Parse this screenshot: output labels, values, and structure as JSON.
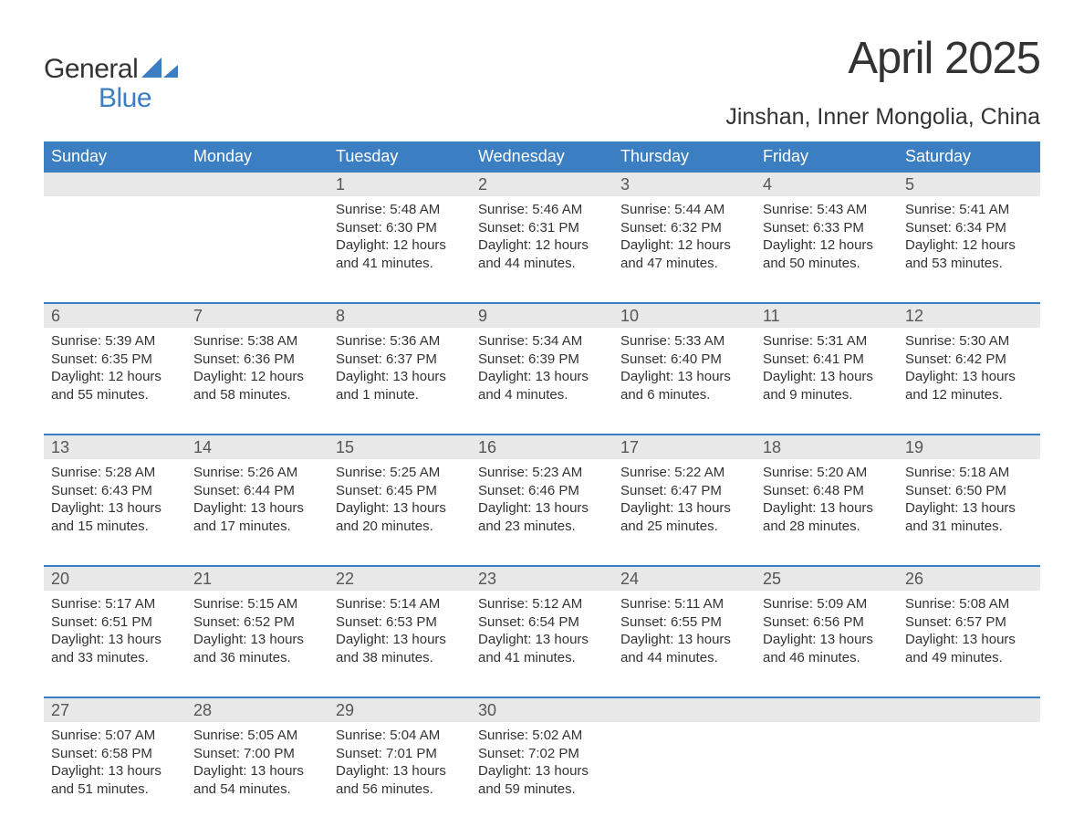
{
  "brand": {
    "line1": "General",
    "line2": "Blue",
    "line1_color": "#333333",
    "line2_color": "#3b7ec1"
  },
  "title": "April 2025",
  "location": "Jinshan, Inner Mongolia, China",
  "colors": {
    "header_bg": "#3b7ec1",
    "header_text": "#ffffff",
    "week_rule": "#3b7ec1",
    "daynum_bg": "#e8e8e8",
    "body_text": "#333333",
    "daynum_text": "#555555",
    "page_bg": "#ffffff"
  },
  "typography": {
    "title_fontsize_pt": 37,
    "location_fontsize_pt": 19,
    "weekday_fontsize_pt": 14,
    "daynum_fontsize_pt": 14,
    "body_fontsize_pt": 11,
    "font_family": "Arial"
  },
  "layout": {
    "columns": 7,
    "rows": 5,
    "start_weekday": "Sunday",
    "first_day_column_index": 2
  },
  "weekdays": [
    "Sunday",
    "Monday",
    "Tuesday",
    "Wednesday",
    "Thursday",
    "Friday",
    "Saturday"
  ],
  "weeks": [
    [
      {
        "day": "",
        "sunrise": "",
        "sunset": "",
        "daylight": ""
      },
      {
        "day": "",
        "sunrise": "",
        "sunset": "",
        "daylight": ""
      },
      {
        "day": "1",
        "sunrise": "Sunrise: 5:48 AM",
        "sunset": "Sunset: 6:30 PM",
        "daylight": "Daylight: 12 hours and 41 minutes."
      },
      {
        "day": "2",
        "sunrise": "Sunrise: 5:46 AM",
        "sunset": "Sunset: 6:31 PM",
        "daylight": "Daylight: 12 hours and 44 minutes."
      },
      {
        "day": "3",
        "sunrise": "Sunrise: 5:44 AM",
        "sunset": "Sunset: 6:32 PM",
        "daylight": "Daylight: 12 hours and 47 minutes."
      },
      {
        "day": "4",
        "sunrise": "Sunrise: 5:43 AM",
        "sunset": "Sunset: 6:33 PM",
        "daylight": "Daylight: 12 hours and 50 minutes."
      },
      {
        "day": "5",
        "sunrise": "Sunrise: 5:41 AM",
        "sunset": "Sunset: 6:34 PM",
        "daylight": "Daylight: 12 hours and 53 minutes."
      }
    ],
    [
      {
        "day": "6",
        "sunrise": "Sunrise: 5:39 AM",
        "sunset": "Sunset: 6:35 PM",
        "daylight": "Daylight: 12 hours and 55 minutes."
      },
      {
        "day": "7",
        "sunrise": "Sunrise: 5:38 AM",
        "sunset": "Sunset: 6:36 PM",
        "daylight": "Daylight: 12 hours and 58 minutes."
      },
      {
        "day": "8",
        "sunrise": "Sunrise: 5:36 AM",
        "sunset": "Sunset: 6:37 PM",
        "daylight": "Daylight: 13 hours and 1 minute."
      },
      {
        "day": "9",
        "sunrise": "Sunrise: 5:34 AM",
        "sunset": "Sunset: 6:39 PM",
        "daylight": "Daylight: 13 hours and 4 minutes."
      },
      {
        "day": "10",
        "sunrise": "Sunrise: 5:33 AM",
        "sunset": "Sunset: 6:40 PM",
        "daylight": "Daylight: 13 hours and 6 minutes."
      },
      {
        "day": "11",
        "sunrise": "Sunrise: 5:31 AM",
        "sunset": "Sunset: 6:41 PM",
        "daylight": "Daylight: 13 hours and 9 minutes."
      },
      {
        "day": "12",
        "sunrise": "Sunrise: 5:30 AM",
        "sunset": "Sunset: 6:42 PM",
        "daylight": "Daylight: 13 hours and 12 minutes."
      }
    ],
    [
      {
        "day": "13",
        "sunrise": "Sunrise: 5:28 AM",
        "sunset": "Sunset: 6:43 PM",
        "daylight": "Daylight: 13 hours and 15 minutes."
      },
      {
        "day": "14",
        "sunrise": "Sunrise: 5:26 AM",
        "sunset": "Sunset: 6:44 PM",
        "daylight": "Daylight: 13 hours and 17 minutes."
      },
      {
        "day": "15",
        "sunrise": "Sunrise: 5:25 AM",
        "sunset": "Sunset: 6:45 PM",
        "daylight": "Daylight: 13 hours and 20 minutes."
      },
      {
        "day": "16",
        "sunrise": "Sunrise: 5:23 AM",
        "sunset": "Sunset: 6:46 PM",
        "daylight": "Daylight: 13 hours and 23 minutes."
      },
      {
        "day": "17",
        "sunrise": "Sunrise: 5:22 AM",
        "sunset": "Sunset: 6:47 PM",
        "daylight": "Daylight: 13 hours and 25 minutes."
      },
      {
        "day": "18",
        "sunrise": "Sunrise: 5:20 AM",
        "sunset": "Sunset: 6:48 PM",
        "daylight": "Daylight: 13 hours and 28 minutes."
      },
      {
        "day": "19",
        "sunrise": "Sunrise: 5:18 AM",
        "sunset": "Sunset: 6:50 PM",
        "daylight": "Daylight: 13 hours and 31 minutes."
      }
    ],
    [
      {
        "day": "20",
        "sunrise": "Sunrise: 5:17 AM",
        "sunset": "Sunset: 6:51 PM",
        "daylight": "Daylight: 13 hours and 33 minutes."
      },
      {
        "day": "21",
        "sunrise": "Sunrise: 5:15 AM",
        "sunset": "Sunset: 6:52 PM",
        "daylight": "Daylight: 13 hours and 36 minutes."
      },
      {
        "day": "22",
        "sunrise": "Sunrise: 5:14 AM",
        "sunset": "Sunset: 6:53 PM",
        "daylight": "Daylight: 13 hours and 38 minutes."
      },
      {
        "day": "23",
        "sunrise": "Sunrise: 5:12 AM",
        "sunset": "Sunset: 6:54 PM",
        "daylight": "Daylight: 13 hours and 41 minutes."
      },
      {
        "day": "24",
        "sunrise": "Sunrise: 5:11 AM",
        "sunset": "Sunset: 6:55 PM",
        "daylight": "Daylight: 13 hours and 44 minutes."
      },
      {
        "day": "25",
        "sunrise": "Sunrise: 5:09 AM",
        "sunset": "Sunset: 6:56 PM",
        "daylight": "Daylight: 13 hours and 46 minutes."
      },
      {
        "day": "26",
        "sunrise": "Sunrise: 5:08 AM",
        "sunset": "Sunset: 6:57 PM",
        "daylight": "Daylight: 13 hours and 49 minutes."
      }
    ],
    [
      {
        "day": "27",
        "sunrise": "Sunrise: 5:07 AM",
        "sunset": "Sunset: 6:58 PM",
        "daylight": "Daylight: 13 hours and 51 minutes."
      },
      {
        "day": "28",
        "sunrise": "Sunrise: 5:05 AM",
        "sunset": "Sunset: 7:00 PM",
        "daylight": "Daylight: 13 hours and 54 minutes."
      },
      {
        "day": "29",
        "sunrise": "Sunrise: 5:04 AM",
        "sunset": "Sunset: 7:01 PM",
        "daylight": "Daylight: 13 hours and 56 minutes."
      },
      {
        "day": "30",
        "sunrise": "Sunrise: 5:02 AM",
        "sunset": "Sunset: 7:02 PM",
        "daylight": "Daylight: 13 hours and 59 minutes."
      },
      {
        "day": "",
        "sunrise": "",
        "sunset": "",
        "daylight": ""
      },
      {
        "day": "",
        "sunrise": "",
        "sunset": "",
        "daylight": ""
      },
      {
        "day": "",
        "sunrise": "",
        "sunset": "",
        "daylight": ""
      }
    ]
  ]
}
